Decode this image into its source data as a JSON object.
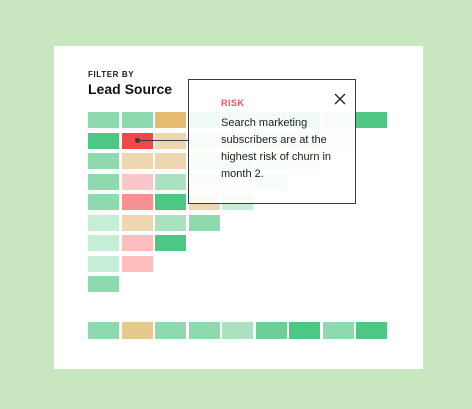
{
  "filter": {
    "eyebrow": "FILTER BY",
    "title": "Lead Source"
  },
  "tooltip": {
    "label": "RISK",
    "text": "Search marketing subscribers are at the highest risk of churn in month 2.",
    "close_icon": "close-icon"
  },
  "colors": {
    "background": "#c8e6bf",
    "panel": "#ffffff",
    "risk": "#e8546a"
  },
  "cohort_grid": [
    [
      "#8fd9ae",
      "#8fd9ae",
      "#e6bb72",
      "#8fd9ae",
      "#a9e1c1",
      "#a9e1c1",
      "#8fd9ae",
      "#c4eed6",
      "#4ec684"
    ],
    [
      "#4ec684",
      "#f04848",
      "#eed6b0",
      "#c4eed6",
      "#c4eed6",
      "#c4eed6",
      "#c4eed6",
      "#dbf4e5"
    ],
    [
      "#8fd9ae",
      "#eed6b0",
      "#eed6b0",
      "#c4eed6",
      "#c4eed6",
      "#c4eed6",
      "#c4eed6"
    ],
    [
      "#8fd9ae",
      "#f8c8c8",
      "#a9e1c1",
      "#f2e7d5",
      "#dbf4e5",
      "#c4eed6"
    ],
    [
      "#8fd9ae",
      "#f79090",
      "#4ec684",
      "#eed6b0",
      "#c4eed6"
    ],
    [
      "#c4eed6",
      "#eed6b0",
      "#a9e1c1",
      "#8fd9ae"
    ],
    [
      "#c4eed6",
      "#fdbdbd",
      "#4ec684"
    ],
    [
      "#c4eed6",
      "#fdbdbd"
    ],
    [
      "#8fd9ae"
    ]
  ],
  "summary_row": [
    "#8fd9ae",
    "#e6c98f",
    "#8fd9ae",
    "#8fd9ae",
    "#a9e1c1",
    "#6dcf96",
    "#4ec684",
    "#8fd9ae",
    "#4ec684"
  ]
}
